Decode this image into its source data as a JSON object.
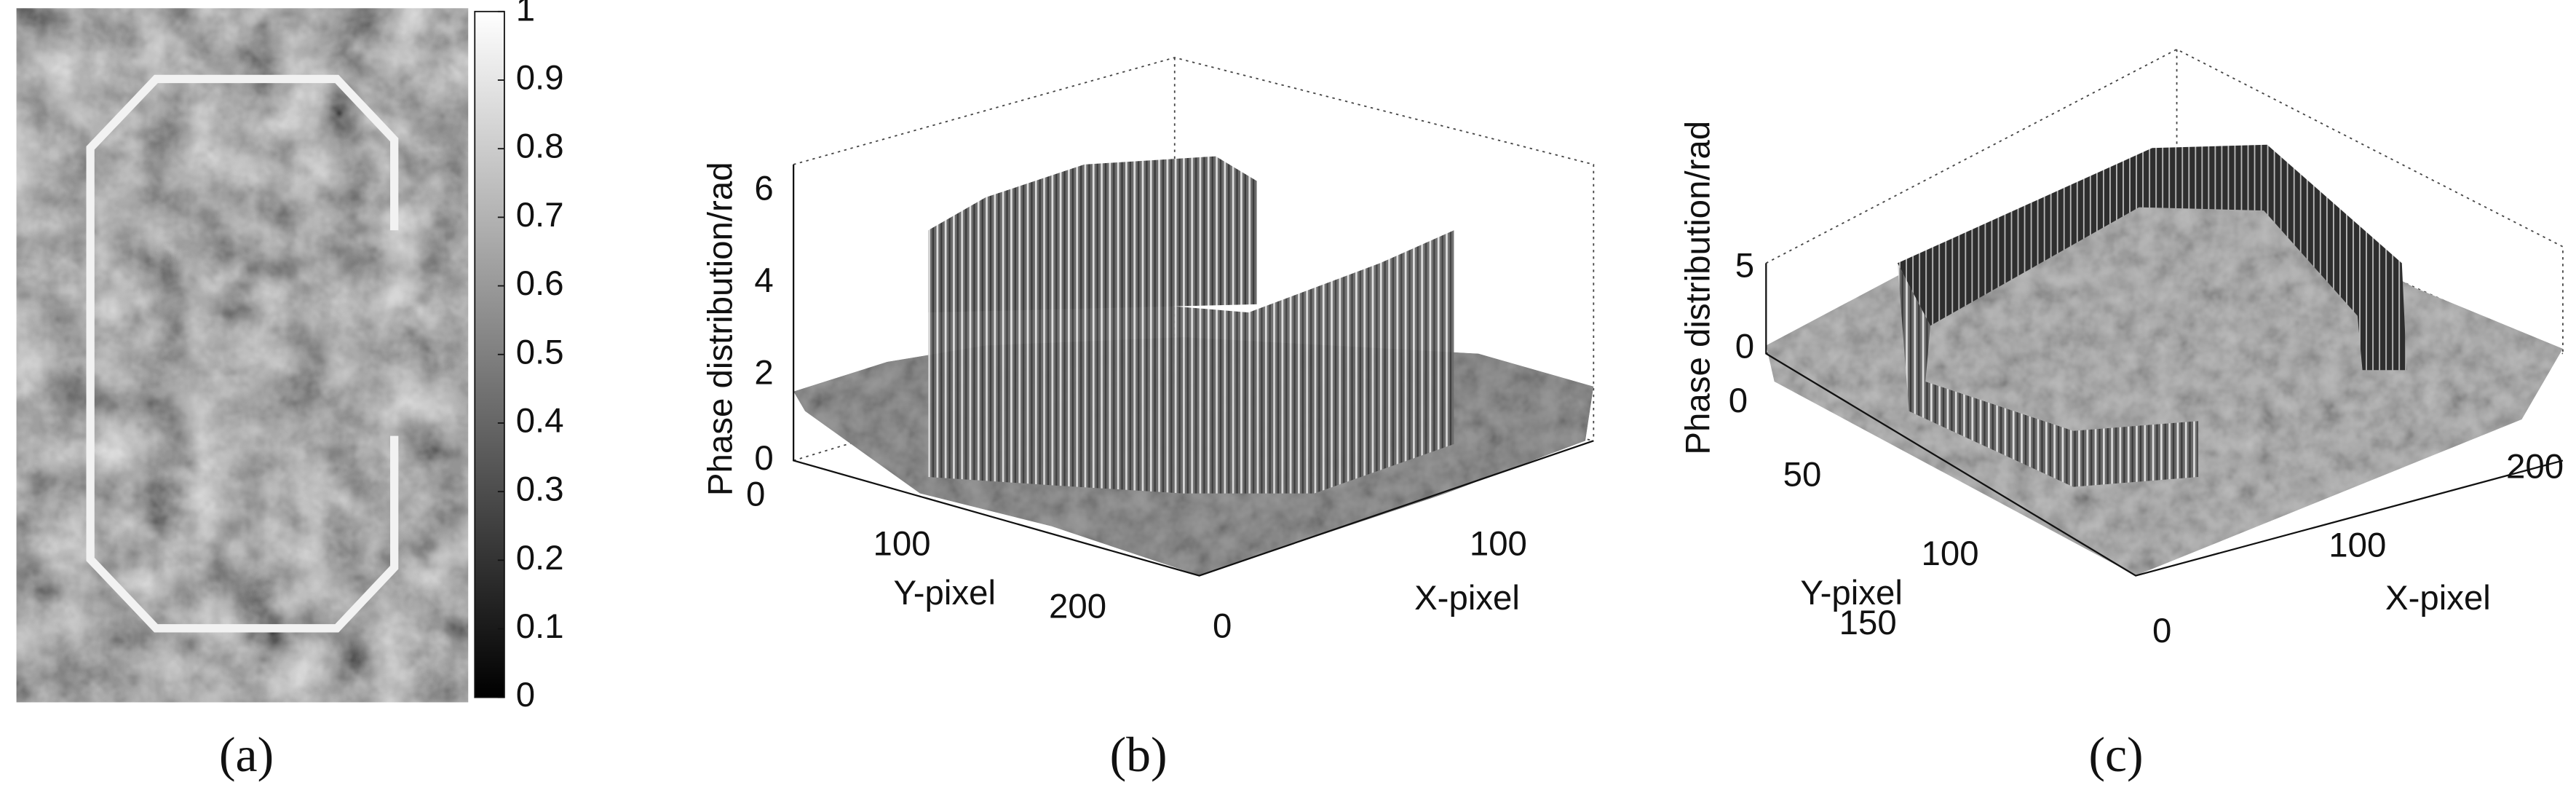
{
  "panels": [
    {
      "caption": "(a)",
      "colorbar_ticks": [
        0,
        0.1,
        0.2,
        0.3,
        0.4,
        0.5,
        0.6,
        0.7,
        0.8,
        0.9,
        1
      ]
    },
    {
      "caption": "(b)",
      "z_label": "Phase distribution/rad",
      "z_ticks": [
        0,
        2,
        4,
        6
      ],
      "y_label": "Y-pixel",
      "y_ticks": [
        0,
        100,
        200
      ],
      "x_label": "X-pixel",
      "x_ticks": [
        0,
        100
      ]
    },
    {
      "caption": "(c)",
      "z_label": "Phase distribution/rad",
      "z_ticks": [
        0,
        5
      ],
      "y_label": "Y-pixel",
      "y_ticks": [
        0,
        50,
        100,
        150
      ],
      "x_label": "X-pixel",
      "x_ticks": [
        0,
        100,
        200
      ]
    }
  ]
}
